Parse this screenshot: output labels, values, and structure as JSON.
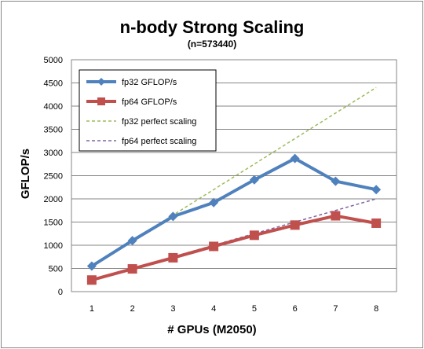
{
  "chart_data": {
    "type": "line",
    "title": "n-body Strong Scaling",
    "subtitle": "(n=573440)",
    "xlabel": "# GPUs (M2050)",
    "ylabel": "GFLOP/s",
    "x": [
      1,
      2,
      3,
      4,
      5,
      6,
      7,
      8
    ],
    "ylim": [
      0,
      5000
    ],
    "yticks": [
      0,
      500,
      1000,
      1500,
      2000,
      2500,
      3000,
      3500,
      4000,
      4500,
      5000
    ],
    "grid": "horizontal",
    "legend_position": "top-left",
    "series": [
      {
        "name": "fp32 GFLOP/s",
        "color": "#4F81BD",
        "style": "solid",
        "marker": "diamond",
        "values": [
          550,
          1100,
          1620,
          1920,
          2410,
          2870,
          2380,
          2200
        ]
      },
      {
        "name": "fp64 GFLOP/s",
        "color": "#C0504D",
        "style": "solid",
        "marker": "square",
        "values": [
          250,
          490,
          730,
          975,
          1215,
          1435,
          1635,
          1475
        ]
      },
      {
        "name": "fp32 perfect scaling",
        "color": "#9BBB59",
        "style": "dashed",
        "marker": "none",
        "values": [
          550,
          1100,
          1650,
          2200,
          2750,
          3300,
          3850,
          4400
        ]
      },
      {
        "name": "fp64 perfect scaling",
        "color": "#8064A2",
        "style": "dashed",
        "marker": "none",
        "values": [
          250,
          500,
          750,
          1000,
          1250,
          1500,
          1750,
          2000
        ]
      }
    ]
  }
}
